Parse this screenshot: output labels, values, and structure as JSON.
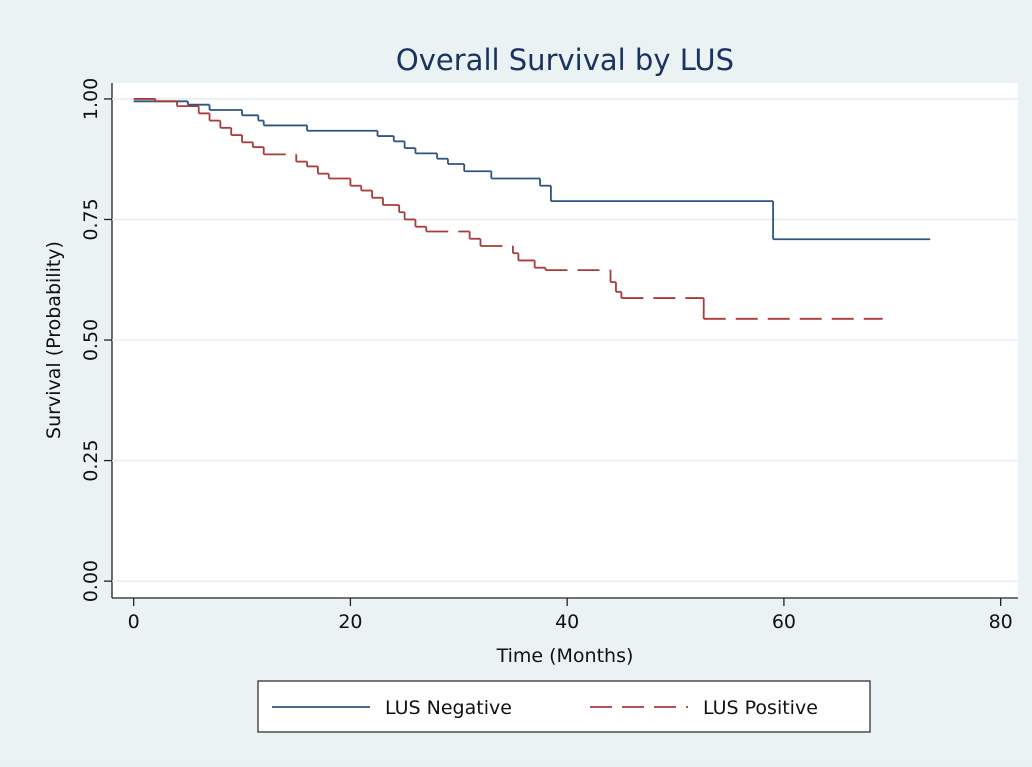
{
  "chart_data": {
    "type": "line",
    "step": true,
    "title": "Overall Survival by LUS",
    "x_label": "Time (Months)",
    "y_label": "Survival (Probability)",
    "xlim": [
      -2,
      81.6
    ],
    "ylim": [
      -0.035,
      1.033
    ],
    "xticks": [
      0,
      20,
      40,
      60,
      80
    ],
    "yticks": [
      {
        "value": 0,
        "label": "0.00"
      },
      {
        "value": 0.25,
        "label": "0.25"
      },
      {
        "value": 0.5,
        "label": "0.50"
      },
      {
        "value": 0.75,
        "label": "0.75"
      },
      {
        "value": 1,
        "label": "1.00"
      }
    ],
    "grid": true,
    "legend": "bottom",
    "series": [
      {
        "name": "LUS Negative",
        "color": "#2b5582",
        "dash": false,
        "x": [
          0,
          5,
          7,
          10,
          11.5,
          12,
          16,
          22.5,
          24,
          25,
          26,
          28,
          29,
          30.5,
          33,
          37.5,
          38.5,
          59,
          73.5
        ],
        "values": [
          0.995,
          0.988,
          0.977,
          0.966,
          0.955,
          0.945,
          0.934,
          0.923,
          0.912,
          0.898,
          0.887,
          0.876,
          0.865,
          0.85,
          0.835,
          0.82,
          0.788,
          0.709,
          0.709
        ]
      },
      {
        "name": "LUS Positive",
        "color": "#a83a3a",
        "dash": true,
        "x": [
          0,
          2,
          4,
          6,
          7,
          8,
          9,
          10,
          11,
          12,
          15,
          16,
          17,
          18,
          20,
          21,
          22,
          23,
          24.5,
          25,
          26,
          27,
          31,
          32,
          35,
          35.5,
          37,
          38,
          44,
          44.5,
          45,
          52.6,
          69.1
        ],
        "values": [
          1.0,
          0.995,
          0.985,
          0.97,
          0.955,
          0.94,
          0.925,
          0.91,
          0.9,
          0.885,
          0.87,
          0.86,
          0.845,
          0.835,
          0.82,
          0.81,
          0.795,
          0.78,
          0.765,
          0.75,
          0.735,
          0.725,
          0.71,
          0.695,
          0.68,
          0.665,
          0.65,
          0.645,
          0.62,
          0.6,
          0.587,
          0.544,
          0.544
        ]
      }
    ]
  }
}
